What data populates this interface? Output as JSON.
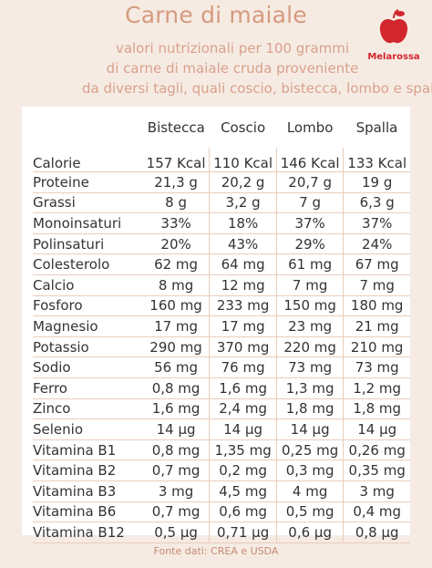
{
  "title": "Carne di maiale",
  "subtitle_lines": [
    "valori nutrizionali per 100 grammi",
    "di carne di maiale cruda proveniente",
    "da diversi tagli, quali coscio, bistecca, lombo e spalla"
  ],
  "brand": "Melarossa",
  "table": {
    "columns": [
      "Bistecca",
      "Coscio",
      "Lombo",
      "Spalla"
    ],
    "rows": [
      {
        "label": "Calorie",
        "values": [
          "157 Kcal",
          "110 Kcal",
          "146 Kcal",
          "133 Kcal"
        ]
      },
      {
        "label": "Proteine",
        "values": [
          "21,3 g",
          "20,2 g",
          "20,7 g",
          "19 g"
        ]
      },
      {
        "label": "Grassi",
        "values": [
          "8 g",
          "3,2 g",
          "7 g",
          "6,3 g"
        ]
      },
      {
        "label": "Monoinsaturi",
        "values": [
          "33%",
          "18%",
          "37%",
          "37%"
        ]
      },
      {
        "label": "Polinsaturi",
        "values": [
          "20%",
          "43%",
          "29%",
          "24%"
        ]
      },
      {
        "label": "Colesterolo",
        "values": [
          "62 mg",
          "64 mg",
          "61 mg",
          "67 mg"
        ]
      },
      {
        "label": "Calcio",
        "values": [
          "8 mg",
          "12 mg",
          "7 mg",
          "7 mg"
        ]
      },
      {
        "label": "Fosforo",
        "values": [
          "160 mg",
          "233 mg",
          "150 mg",
          "180 mg"
        ]
      },
      {
        "label": "Magnesio",
        "values": [
          "17 mg",
          "17 mg",
          "23 mg",
          "21 mg"
        ]
      },
      {
        "label": "Potassio",
        "values": [
          "290 mg",
          "370 mg",
          "220 mg",
          "210 mg"
        ]
      },
      {
        "label": "Sodio",
        "values": [
          "56 mg",
          "76 mg",
          "73 mg",
          "73 mg"
        ]
      },
      {
        "label": "Ferro",
        "values": [
          "0,8 mg",
          "1,6 mg",
          "1,3 mg",
          "1,2 mg"
        ]
      },
      {
        "label": "Zinco",
        "values": [
          "1,6 mg",
          "2,4 mg",
          "1,8 mg",
          "1,8 mg"
        ]
      },
      {
        "label": "Selenio",
        "values": [
          "14 µg",
          "14 µg",
          "14 µg",
          "14 µg"
        ]
      },
      {
        "label": "Vitamina B1",
        "values": [
          "0,8 mg",
          "1,35 mg",
          "0,25 mg",
          "0,26 mg"
        ]
      },
      {
        "label": "Vitamina B2",
        "values": [
          "0,7 mg",
          "0,2 mg",
          "0,3 mg",
          "0,35 mg"
        ]
      },
      {
        "label": "Vitamina B3",
        "values": [
          "3 mg",
          "4,5 mg",
          "4 mg",
          "3 mg"
        ]
      },
      {
        "label": "Vitamina B6",
        "values": [
          "0,7 mg",
          "0,6 mg",
          "0,5 mg",
          "0,4 mg"
        ]
      },
      {
        "label": "Vitamina B12",
        "values": [
          "0,5 µg",
          "0,71 µg",
          "0,6 µg",
          "0,8 µg"
        ]
      }
    ]
  },
  "source": "Fonte dati: CREA e USDA",
  "colors": {
    "background": "#f6ebe3",
    "accent": "#d59a80",
    "brand": "#d2262f"
  }
}
